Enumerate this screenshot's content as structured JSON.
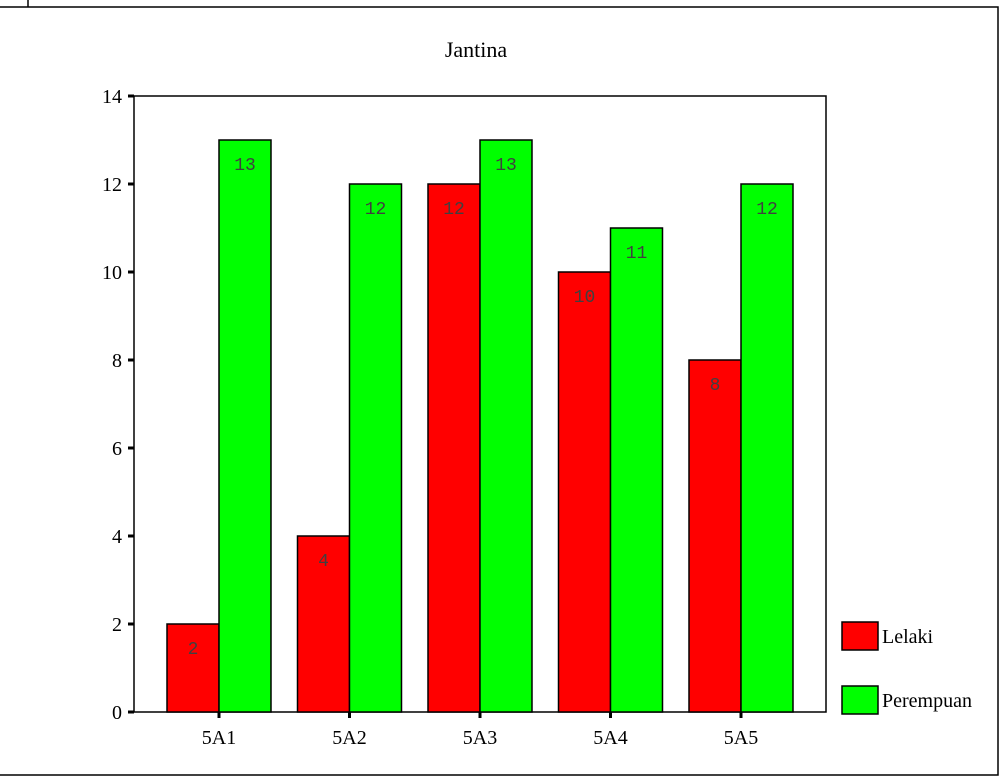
{
  "chart_data": {
    "type": "bar",
    "title": "Jantina",
    "xlabel": "",
    "ylabel": "",
    "categories": [
      "5A1",
      "5A2",
      "5A3",
      "5A4",
      "5A5"
    ],
    "series": [
      {
        "name": "Lelaki",
        "color": "#ff0000",
        "values": [
          2,
          4,
          12,
          10,
          8
        ]
      },
      {
        "name": "Perempuan",
        "color": "#00ff00",
        "values": [
          13,
          12,
          13,
          11,
          12
        ]
      }
    ],
    "ylim": [
      0,
      14
    ],
    "yticks": [
      0,
      2,
      4,
      6,
      8,
      10,
      12,
      14
    ],
    "grid": false,
    "legend_position": "bottom-right",
    "data_labels": true
  }
}
